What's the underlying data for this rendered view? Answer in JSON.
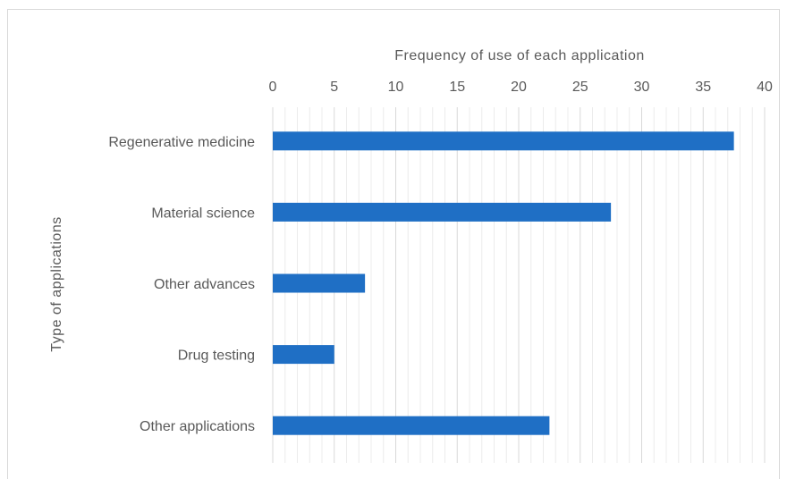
{
  "chart_data": {
    "type": "bar",
    "orientation": "horizontal",
    "xlabel": "Frequency of use of each application",
    "ylabel": "Type of applications",
    "xlim": [
      0,
      40
    ],
    "x_ticks": [
      "0",
      "5",
      "10",
      "15",
      "20",
      "25",
      "30",
      "35",
      "40"
    ],
    "x_axis_position": "top",
    "grid": true,
    "categories": [
      "Regenerative medicine",
      "Material science",
      "Other advances",
      "Drug testing",
      "Other applications"
    ],
    "series": [
      {
        "values": [
          37.5,
          27.5,
          7.5,
          5,
          22.5
        ]
      }
    ],
    "colors": {
      "bar": "#1f6fc5",
      "gridMajor": "#d9d9d9",
      "gridMinor": "#ececec",
      "text": "#595959"
    }
  }
}
